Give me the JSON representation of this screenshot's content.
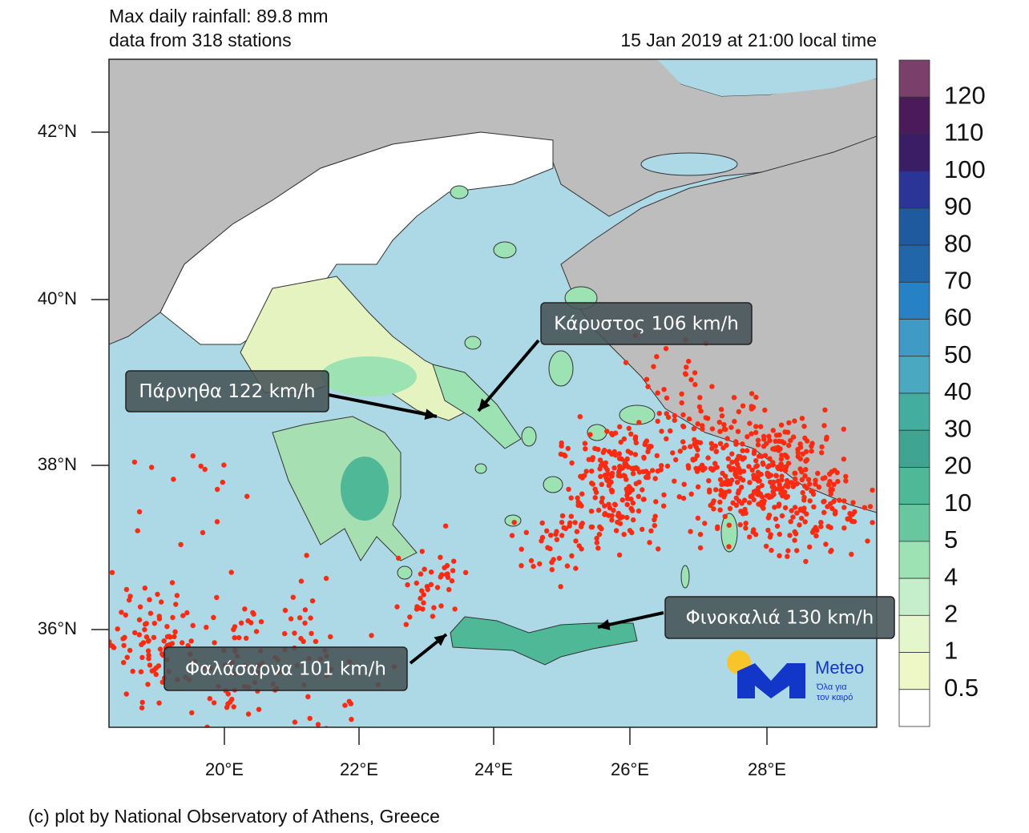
{
  "header": {
    "line1": "Max daily rainfall: 89.8 mm",
    "line2": "data from 318 stations",
    "timestamp": "15 Jan 2019 at 21:00 local time"
  },
  "map": {
    "lat_labels": [
      "42°N",
      "40°N",
      "38°N",
      "36°N"
    ],
    "lon_labels": [
      "20°E",
      "22°E",
      "24°E",
      "26°E",
      "28°E"
    ]
  },
  "colorbar": {
    "labels": [
      "120",
      "110",
      "100",
      "90",
      "80",
      "70",
      "60",
      "50",
      "40",
      "30",
      "20",
      "10",
      "5",
      "4",
      "2",
      "1",
      "0.5"
    ],
    "colors": [
      "#7b3f6b",
      "#4b1a5a",
      "#3b1d66",
      "#2a3597",
      "#1f5a9e",
      "#2066a8",
      "#2682c4",
      "#3f9ac6",
      "#4aa9c1",
      "#43ad9f",
      "#3fa592",
      "#4fb897",
      "#68c79f",
      "#9ce2b3",
      "#c4efca",
      "#e4f6cc",
      "#eef8c6",
      "#ffffff"
    ]
  },
  "annotations": [
    {
      "text": "Κάρυστος 106 km/h"
    },
    {
      "text": "Πάρνηθα 122 km/h"
    },
    {
      "text": "Φαλάσαρνα 101 km/h"
    },
    {
      "text": "Φινοκαλιά 130 km/h"
    }
  ],
  "logo": {
    "name": "Meteo",
    "tagline_1": "Όλα για",
    "tagline_2": "τον καιρό"
  },
  "footer": "(c) plot by National Observatory of Athens, Greece"
}
